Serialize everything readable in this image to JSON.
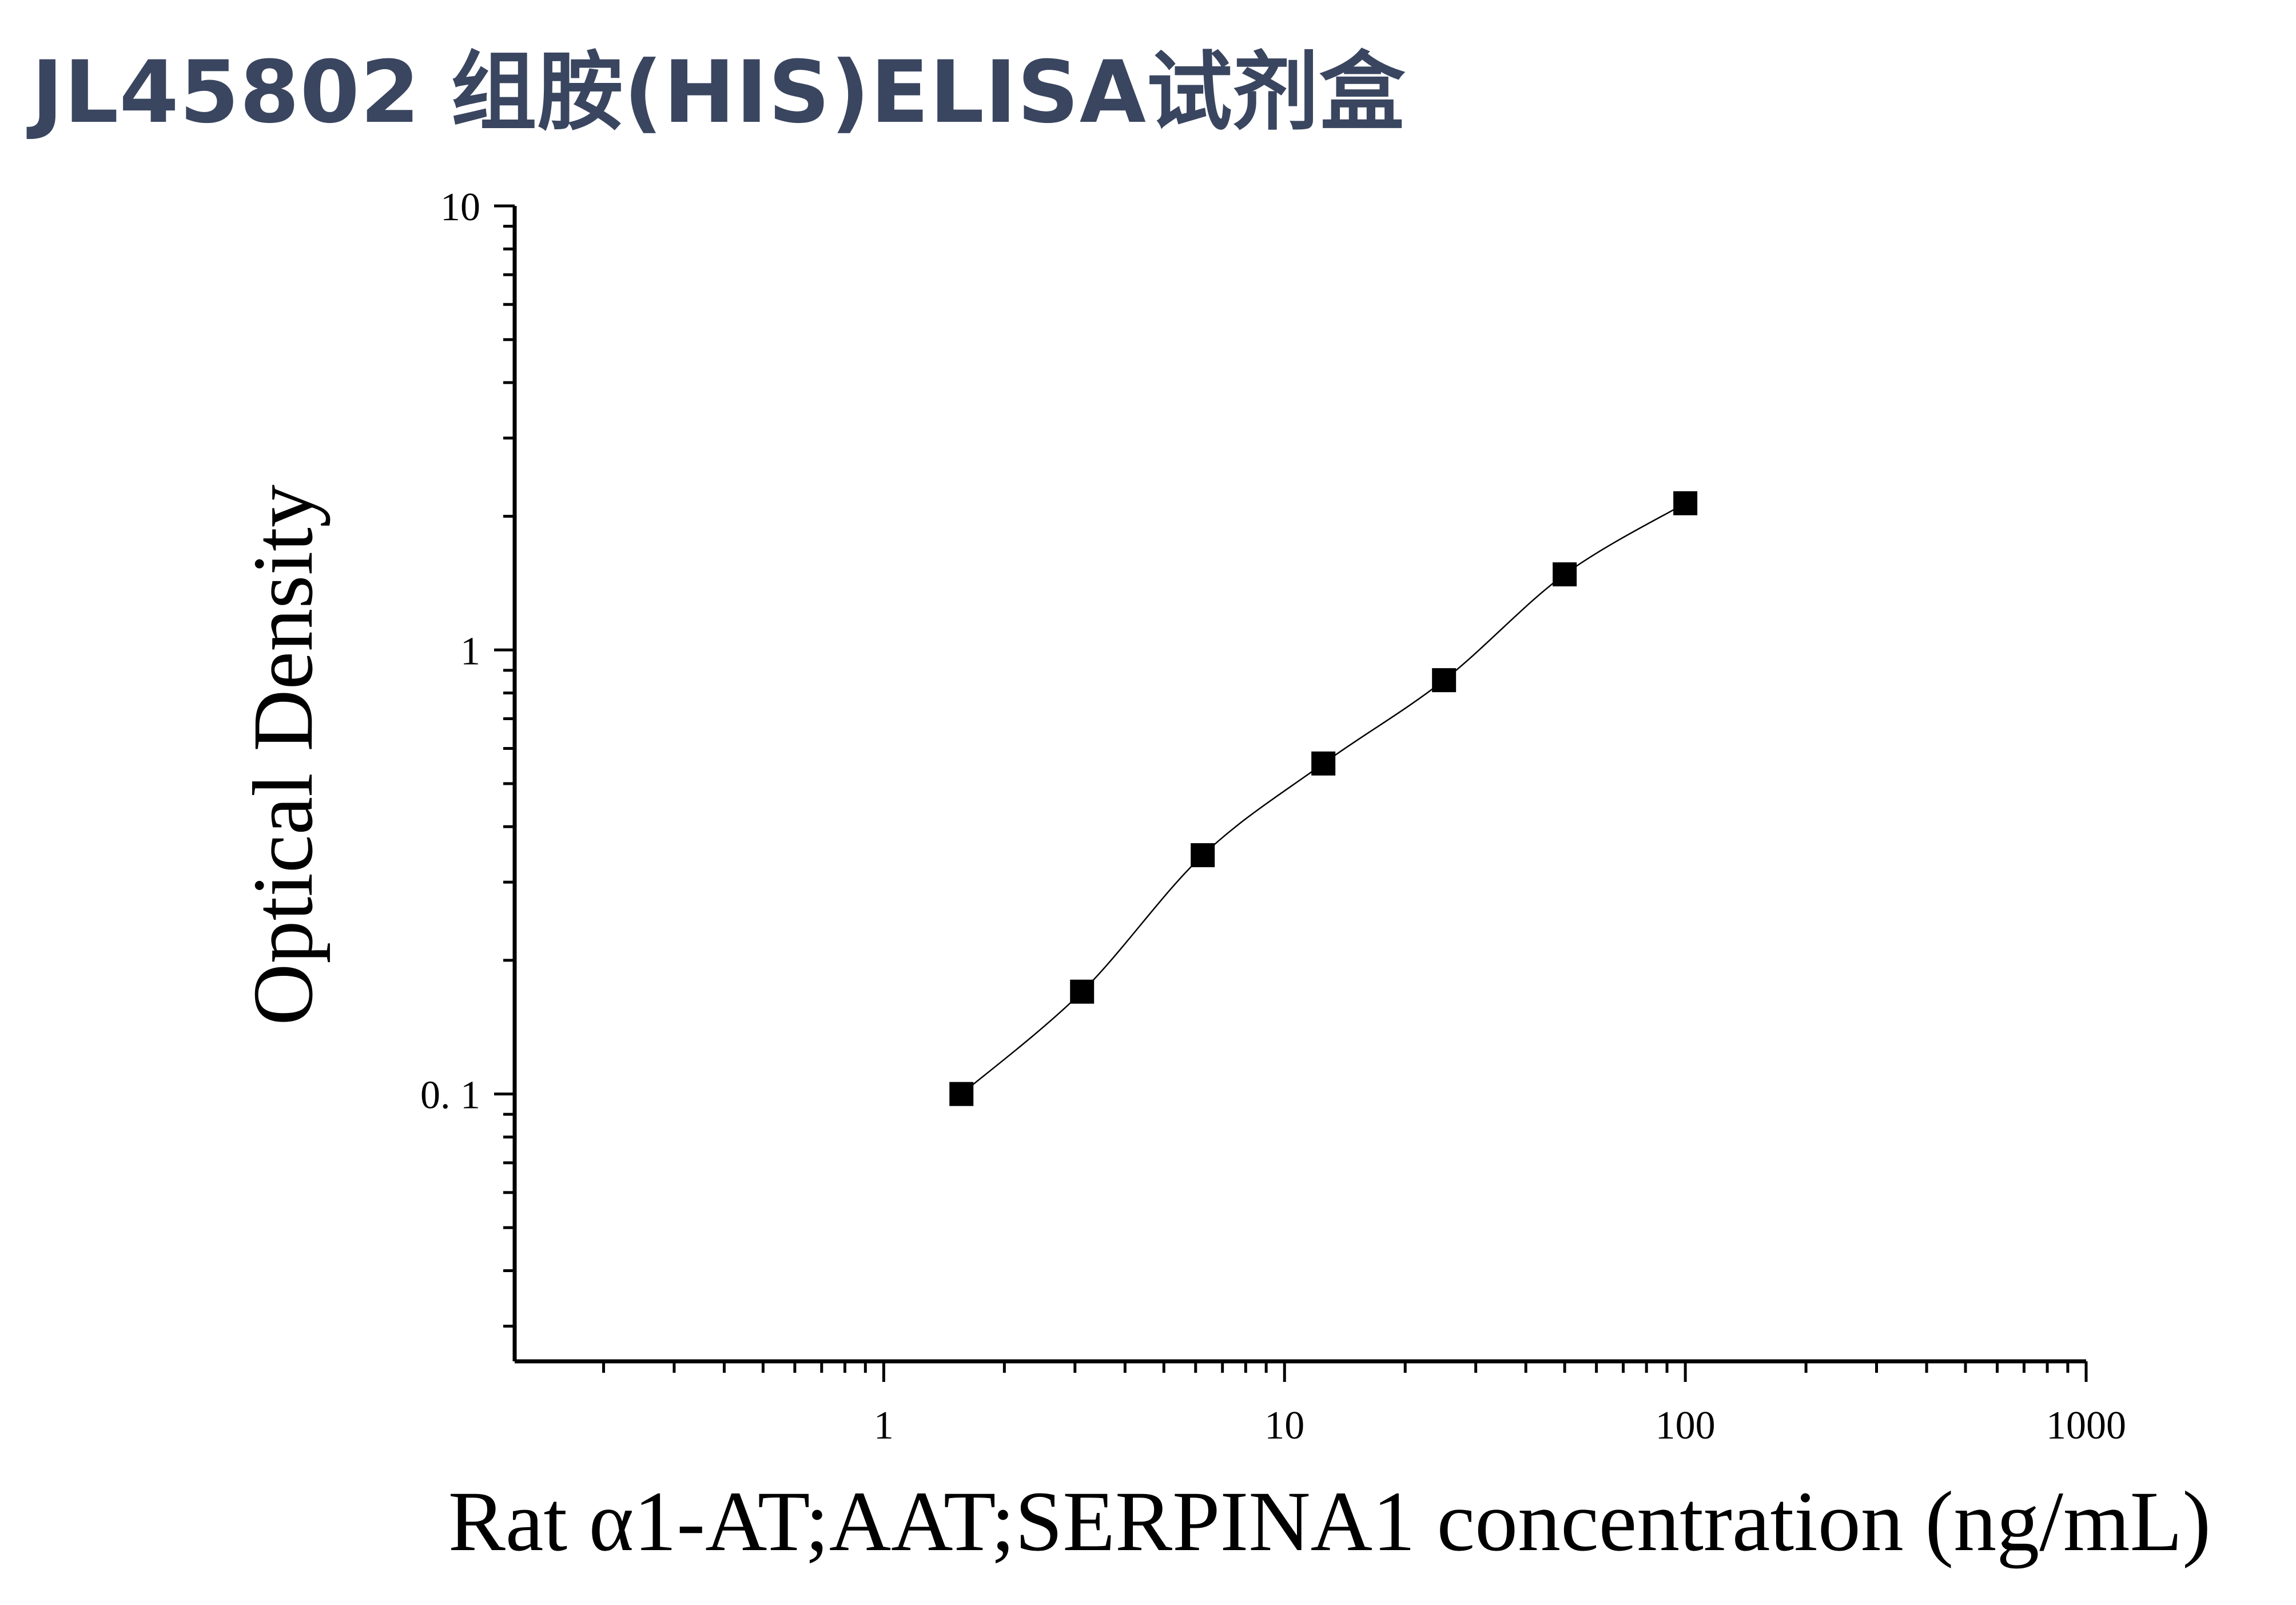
{
  "header": {
    "title": "JL45802 组胺(HIS)ELISA试剂盒"
  },
  "chart_data": {
    "type": "scatter",
    "xscale": "log",
    "yscale": "log",
    "xlabel": "Rat α1-AT;AAT;SERPINA1 concentration (ng/mL)",
    "ylabel": "Optical Density",
    "xlim": [
      0.12,
      1000
    ],
    "ylim": [
      0.025,
      10
    ],
    "xticks": [
      1,
      10,
      100,
      1000
    ],
    "xtick_labels": [
      "1",
      "10",
      "100",
      "1000"
    ],
    "yticks": [
      0.1,
      1,
      10
    ],
    "ytick_labels": [
      "0. 1",
      "1",
      "10"
    ],
    "series": [
      {
        "x": [
          1.5625,
          3.125,
          6.25,
          12.5,
          25,
          50,
          100
        ],
        "y": [
          0.1,
          0.17,
          0.345,
          0.555,
          0.855,
          1.48,
          2.14
        ]
      }
    ],
    "fit_curve": true,
    "marker": "square",
    "grid": false
  }
}
